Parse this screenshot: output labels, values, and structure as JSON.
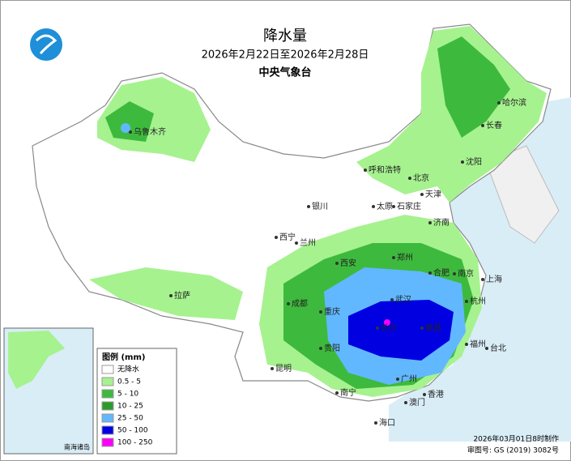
{
  "header": {
    "title": "降水量",
    "subtitle": "2026年2月22日至2026年2月28日",
    "agency": "中央气象台"
  },
  "legend": {
    "title": "图例 (mm)",
    "items": [
      {
        "label": "无降水",
        "color": "#ffffff"
      },
      {
        "label": "0.5 - 5",
        "color": "#a6f28f"
      },
      {
        "label": "5 - 10",
        "color": "#3dba3d"
      },
      {
        "label": "10 - 25",
        "color": "#2a9b2a"
      },
      {
        "label": "25 - 50",
        "color": "#61b8ff"
      },
      {
        "label": "50 - 100",
        "color": "#0000e1"
      },
      {
        "label": "100 - 250",
        "color": "#fa00fa"
      }
    ]
  },
  "cities": [
    "乌鲁木齐",
    "哈尔滨",
    "长春",
    "沈阳",
    "呼和浩特",
    "北京",
    "天津",
    "石家庄",
    "太原",
    "济南",
    "银川",
    "西宁",
    "兰州",
    "郑州",
    "西安",
    "合肥",
    "南京",
    "上海",
    "成都",
    "武汉",
    "杭州",
    "重庆",
    "拉萨",
    "长沙",
    "南昌",
    "福州",
    "台北",
    "贵阳",
    "昆明",
    "南宁",
    "广州",
    "香港",
    "澳门",
    "海口"
  ],
  "inset": {
    "label": "南海诸岛"
  },
  "footer": {
    "made": "2026年03月01日8时制作",
    "approval": "审图号: GS (2019) 3082号"
  }
}
